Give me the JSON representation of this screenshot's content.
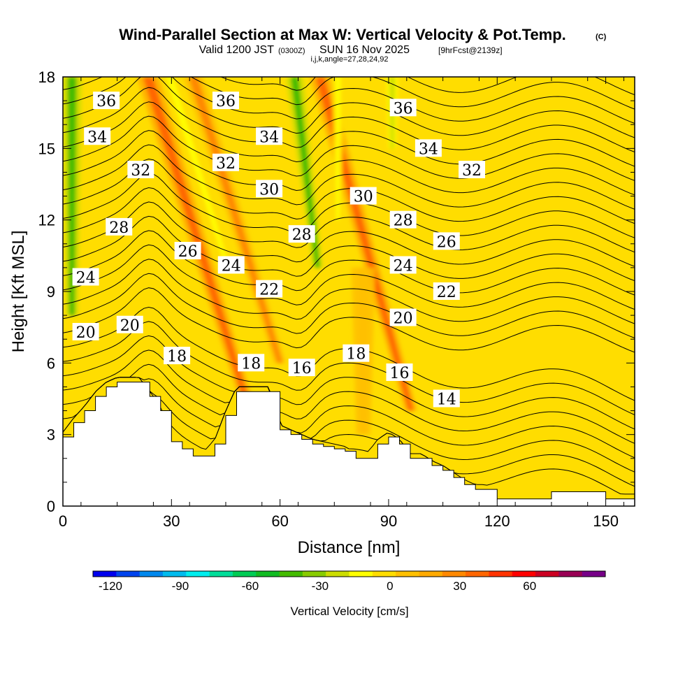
{
  "header": {
    "title": "Wind-Parallel Section at Max W: Vertical Velocity & Pot.Temp.",
    "copyright": "(C)",
    "valid_prefix": "Valid 1200 JST",
    "valid_utc": "(0300Z)",
    "valid_date": "SUN 16 Nov 2025",
    "forecast": "[9hrFcst@2139z]",
    "indices": "i,j,k,angle=27,28,24,92"
  },
  "chart_data": {
    "type": "contour-section",
    "title": "Wind-Parallel Section at Max W: Vertical Velocity & Pot.Temp.",
    "xlabel": "Distance [nm]",
    "ylabel": "Height [Kft MSL]",
    "xlim": [
      0,
      158
    ],
    "ylim": [
      0,
      18
    ],
    "x_ticks": [
      0,
      30,
      60,
      90,
      120,
      150
    ],
    "y_ticks": [
      0,
      3,
      6,
      9,
      12,
      15,
      18
    ],
    "colorbar": {
      "label": "Vertical Velocity [cm/s]",
      "min": -127.5,
      "step": 10,
      "ticks": [
        -120,
        -90,
        -60,
        -30,
        0,
        30,
        60
      ],
      "colors": [
        "#0000ee",
        "#0044ee",
        "#0088ee",
        "#00bbee",
        "#00eeee",
        "#00dd99",
        "#00cc55",
        "#11bb22",
        "#44bb00",
        "#88cc00",
        "#ccdd00",
        "#ffff00",
        "#ffdd00",
        "#ffc000",
        "#ffaa00",
        "#ff8800",
        "#ff6600",
        "#ff3300",
        "#ff0000",
        "#cc0022",
        "#990055",
        "#770088"
      ]
    },
    "vertical_velocity_features": [
      {
        "x": 2.5,
        "kind": "down",
        "value_cms": -45,
        "width_nm": 2.5,
        "top_kft": 18,
        "bottom_kft": 8
      },
      {
        "x": 23.5,
        "kind": "up",
        "value_cms": 35,
        "width_nm": 2.8,
        "top_kft": 18,
        "bottom_kft": 4.5,
        "slope": -2.0
      },
      {
        "x": 29.5,
        "kind": "down",
        "value_cms": -15,
        "width_nm": 2.0,
        "top_kft": 18,
        "bottom_kft": 10,
        "slope": -2.0
      },
      {
        "x": 36,
        "kind": "up",
        "value_cms": 25,
        "width_nm": 2.5,
        "top_kft": 18,
        "bottom_kft": 6,
        "slope": -2.0
      },
      {
        "x": 64,
        "kind": "down",
        "value_cms": -45,
        "width_nm": 2.2,
        "top_kft": 18,
        "bottom_kft": 10,
        "slope": -0.8
      },
      {
        "x": 71,
        "kind": "up",
        "value_cms": 35,
        "width_nm": 2.5,
        "top_kft": 18,
        "bottom_kft": 4,
        "slope": -1.8
      },
      {
        "x": 76,
        "kind": "down",
        "value_cms": -15,
        "width_nm": 1.5,
        "top_kft": 18,
        "bottom_kft": 12
      },
      {
        "x": 83,
        "kind": "up",
        "value_cms": 10,
        "width_nm": 3.0,
        "top_kft": 10,
        "bottom_kft": 3
      },
      {
        "x": 91,
        "kind": "down",
        "value_cms": -20,
        "width_nm": 1.5,
        "top_kft": 18,
        "bottom_kft": 15
      }
    ],
    "terrain": {
      "x": [
        0,
        3,
        6,
        9,
        12,
        15,
        18,
        21,
        24,
        27,
        30,
        33,
        36,
        39,
        42,
        45,
        48,
        51,
        54,
        57,
        60,
        63,
        66,
        69,
        72,
        75,
        78,
        81,
        84,
        87,
        90,
        93,
        96,
        99,
        102,
        105,
        108,
        111,
        114,
        117,
        120,
        123,
        126,
        129,
        132,
        135,
        138,
        141,
        144,
        147,
        150,
        153,
        156,
        158
      ],
      "height_kft": [
        2.9,
        3.5,
        4.0,
        4.6,
        5.0,
        5.2,
        5.2,
        5.2,
        4.6,
        4.0,
        2.7,
        2.4,
        2.1,
        2.1,
        2.6,
        3.8,
        4.8,
        4.8,
        4.8,
        4.8,
        3.2,
        3.0,
        2.8,
        2.6,
        2.5,
        2.4,
        2.3,
        2.0,
        2.0,
        2.6,
        2.9,
        2.6,
        2.0,
        2.0,
        1.7,
        1.5,
        1.2,
        0.9,
        0.7,
        0.7,
        0.3,
        0.3,
        0.3,
        0.3,
        0.3,
        0.6,
        0.6,
        0.6,
        0.6,
        0.6,
        0.3,
        0.3,
        0.3,
        0.3
      ]
    },
    "theta_contour_levels_c": [
      12,
      13,
      14,
      15,
      16,
      17,
      18,
      19,
      20,
      21,
      22,
      23,
      24,
      25,
      26,
      27,
      28,
      29,
      30,
      31,
      32,
      33,
      34,
      35,
      36,
      37,
      38
    ],
    "contour_labels": [
      {
        "text": "36",
        "x": 12,
        "y_kft": 17.0
      },
      {
        "text": "36",
        "x": 45,
        "y_kft": 17.0
      },
      {
        "text": "36",
        "x": 94,
        "y_kft": 16.7
      },
      {
        "text": "34",
        "x": 9.5,
        "y_kft": 15.5
      },
      {
        "text": "34",
        "x": 57,
        "y_kft": 15.5
      },
      {
        "text": "34",
        "x": 101,
        "y_kft": 15.0
      },
      {
        "text": "32",
        "x": 21.5,
        "y_kft": 14.1
      },
      {
        "text": "32",
        "x": 45,
        "y_kft": 14.4
      },
      {
        "text": "32",
        "x": 113,
        "y_kft": 14.1
      },
      {
        "text": "30",
        "x": 57,
        "y_kft": 13.3
      },
      {
        "text": "30",
        "x": 83,
        "y_kft": 13.0
      },
      {
        "text": "28",
        "x": 15.5,
        "y_kft": 11.7
      },
      {
        "text": "28",
        "x": 66,
        "y_kft": 11.4
      },
      {
        "text": "28",
        "x": 94,
        "y_kft": 12.0
      },
      {
        "text": "26",
        "x": 34.5,
        "y_kft": 10.7
      },
      {
        "text": "26",
        "x": 106,
        "y_kft": 11.1
      },
      {
        "text": "24",
        "x": 6.3,
        "y_kft": 9.6
      },
      {
        "text": "24",
        "x": 46.5,
        "y_kft": 10.1
      },
      {
        "text": "24",
        "x": 94,
        "y_kft": 10.1
      },
      {
        "text": "22",
        "x": 57,
        "y_kft": 9.1
      },
      {
        "text": "22",
        "x": 106,
        "y_kft": 9.0
      },
      {
        "text": "20",
        "x": 6.3,
        "y_kft": 7.3
      },
      {
        "text": "20",
        "x": 18.5,
        "y_kft": 7.6
      },
      {
        "text": "20",
        "x": 94,
        "y_kft": 7.9
      },
      {
        "text": "18",
        "x": 31.5,
        "y_kft": 6.3
      },
      {
        "text": "18",
        "x": 52,
        "y_kft": 6.0
      },
      {
        "text": "18",
        "x": 81,
        "y_kft": 6.4
      },
      {
        "text": "16",
        "x": 66,
        "y_kft": 5.8
      },
      {
        "text": "16",
        "x": 93,
        "y_kft": 5.6
      },
      {
        "text": "14",
        "x": 106,
        "y_kft": 4.5
      }
    ]
  }
}
